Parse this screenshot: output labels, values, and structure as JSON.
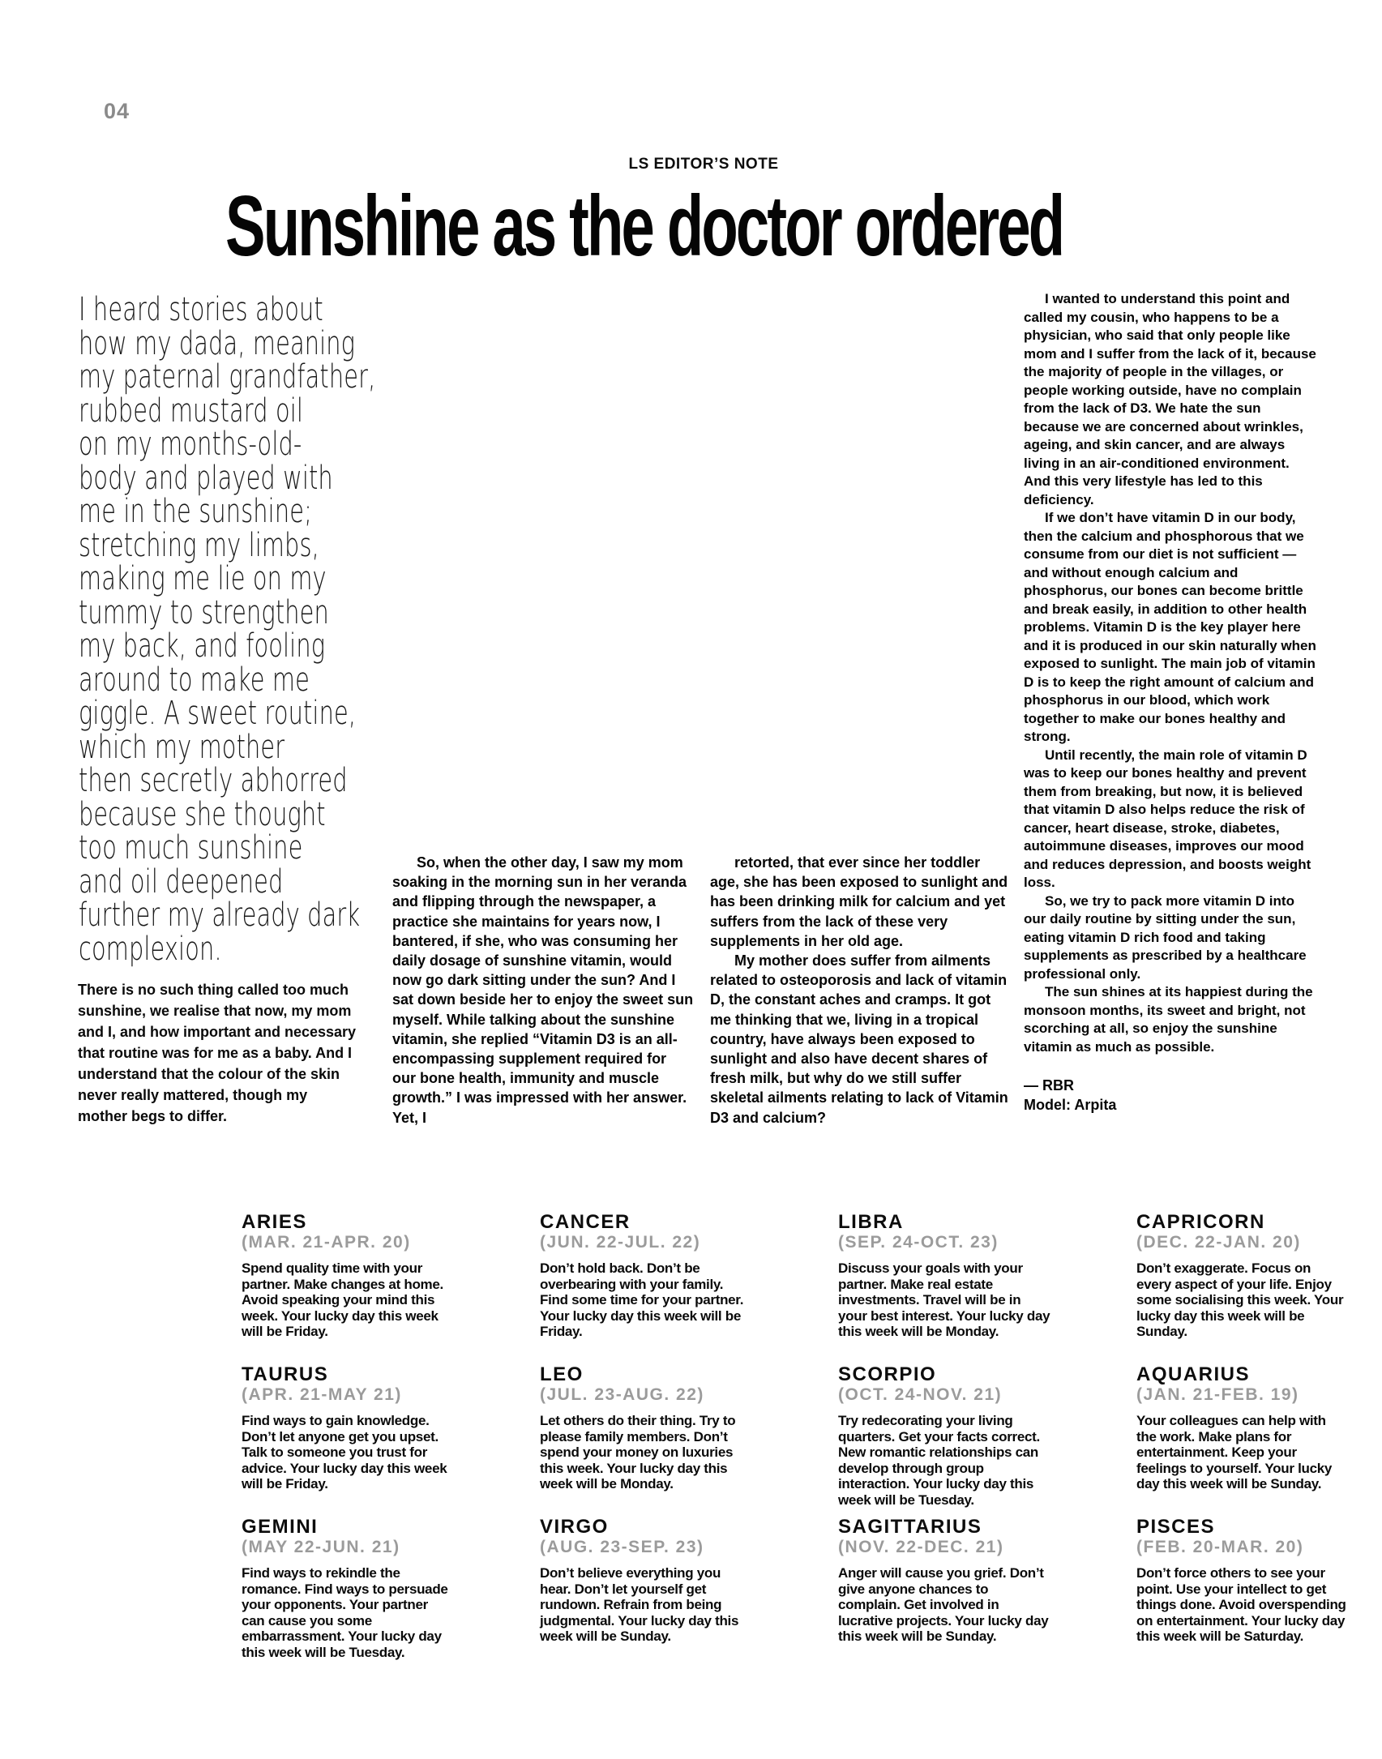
{
  "page": {
    "number": "04"
  },
  "colors": {
    "background": "#ffffff",
    "text": "#050505",
    "page_number_gray": "#8a8a8a",
    "sign_dates_gray": "#9b9b9b"
  },
  "editor_note": {
    "kicker": "LS EDITOR’S NOTE",
    "headline": "Sunshine as the doctor ordered",
    "intro_lines": [
      "I heard stories about",
      "how my dada, meaning",
      "my paternal grandfather,",
      "rubbed mustard oil",
      "on my months-old-",
      "body and played with",
      "me in the sunshine;",
      "stretching my limbs,",
      "making me lie on my",
      "tummy to strengthen",
      "my back, and fooling",
      "around to make me",
      "giggle. A sweet routine,",
      "which my mother",
      "then secretly abhorred",
      "because she thought",
      "too much sunshine",
      "and oil deepened",
      "further my already dark",
      "complexion."
    ],
    "standfirst": "There is no such thing called too much sunshine, we realise that now, my mom and I, and how important and necessary that routine was for me as a baby. And I understand that the colour of the skin never really mattered, though my mother begs to differ.",
    "column2_paragraphs": [
      "So, when the other day, I saw my mom soaking in the morning sun in her veranda and flipping through the newspaper, a practice she maintains for years now, I bantered, if she, who was consuming her daily dosage of sunshine vitamin, would now go dark sitting under the sun? And I sat down beside her to enjoy the sweet sun myself. While talking about the sunshine vitamin, she replied “Vitamin D3 is an all-encompassing supplement required for our bone health, immunity and muscle growth.” I was impressed with her answer. Yet, I"
    ],
    "column3_paragraphs": [
      "retorted, that ever since her toddler age, she has been exposed to sunlight and has been drinking milk for calcium and yet suffers from the lack of these very supplements in her old age.",
      "My mother does suffer from ailments related to osteoporosis and lack of vitamin D, the constant aches and cramps. It got me thinking that we, living in a tropical country, have always been exposed to sunlight and also have decent shares of fresh milk, but why do we still suffer skeletal ailments relating to lack of Vitamin D3 and calcium?"
    ],
    "column4_paragraphs": [
      "I wanted to understand this point and called my cousin, who happens to be a physician, who said that only people like mom and I suffer from the lack of it, because the majority of people in the villages, or people working outside, have no complain from the lack of D3. We hate the sun because we are concerned about wrinkles, ageing, and skin cancer, and are always living in an air-conditioned environment. And this very lifestyle has led to this deficiency.",
      "If we don’t have vitamin D in our body, then the calcium and phosphorous that we consume from our diet is not sufficient — and without enough calcium and phosphorus, our bones can become brittle and break easily, in addition to other health problems. Vitamin D is the key player here and it is produced in our skin naturally when exposed to sunlight. The main job of vitamin D is to keep the right amount of calcium and phosphorus in our blood, which work together to make our bones healthy and strong.",
      "Until recently, the main role of vitamin D was to keep our bones healthy and prevent them from breaking, but now, it is believed that vitamin D also helps reduce the risk of cancer, heart disease, stroke, diabetes, autoimmune diseases, improves our mood and reduces depression, and boosts weight loss.",
      "So, we try to pack more vitamin D into our daily routine by sitting under the sun, eating vitamin D rich food and taking supplements as prescribed by a healthcare professional only.",
      "The sun shines at its happiest during the monsoon months, its sweet and bright, not scorching at all, so enjoy the sunshine vitamin as much as possible."
    ],
    "byline": "— RBR",
    "model_credit": "Model: Arpita"
  },
  "horoscope": {
    "signs": [
      {
        "name": "ARIES",
        "dates": "(MAR. 21-APR. 20)",
        "text": "Spend quality time with your partner. Make changes at home. Avoid speaking your mind this week. Your lucky day this week will be Friday."
      },
      {
        "name": "CANCER",
        "dates": "(JUN. 22-JUL. 22)",
        "text": "Don’t hold back. Don’t be overbearing with your family. Find some time for your partner. Your lucky day this week will be Friday."
      },
      {
        "name": "LIBRA",
        "dates": "(SEP. 24-OCT. 23)",
        "text": "Discuss your goals with your partner. Make real estate investments. Travel will be in your best interest. Your lucky day this week will be Monday."
      },
      {
        "name": "CAPRICORN",
        "dates": "(DEC. 22-JAN. 20)",
        "text": "Don’t exaggerate. Focus on every aspect of your life. Enjoy some socialising this week. Your lucky day this week will be Sunday."
      },
      {
        "name": "TAURUS",
        "dates": "(APR. 21-MAY 21)",
        "text": "Find ways to gain knowledge. Don’t let anyone get you upset. Talk to someone you trust for advice. Your lucky day this week will be Friday."
      },
      {
        "name": "LEO",
        "dates": "(JUL. 23-AUG. 22)",
        "text": "Let others do their thing. Try to please family members. Don’t spend your money on luxuries this week. Your lucky day this week will be Monday."
      },
      {
        "name": "SCORPIO",
        "dates": "(OCT. 24-NOV. 21)",
        "text": "Try redecorating your living quarters. Get your facts correct. New romantic relationships can develop through group interaction. Your lucky day this week will be Tuesday."
      },
      {
        "name": "AQUARIUS",
        "dates": "(JAN. 21-FEB. 19)",
        "text": "Your colleagues can help with the work. Make plans for entertainment. Keep your feelings to yourself. Your lucky day this week will be Sunday."
      },
      {
        "name": "GEMINI",
        "dates": "(MAY 22-JUN. 21)",
        "text": "Find ways to rekindle the romance. Find ways to persuade your opponents. Your partner can cause you some embarrassment. Your lucky day this week will be Tuesday."
      },
      {
        "name": "VIRGO",
        "dates": "(AUG. 23-SEP. 23)",
        "text": "Don’t believe everything you hear. Don’t let yourself get rundown. Refrain from being judgmental. Your lucky day this week will be Sunday."
      },
      {
        "name": "SAGITTARIUS",
        "dates": "(NOV. 22-DEC. 21)",
        "text": "Anger will cause you grief. Don’t give anyone chances to complain. Get involved in lucrative projects. Your lucky day this week will be Sunday."
      },
      {
        "name": "PISCES",
        "dates": "(FEB. 20-MAR. 20)",
        "text": "Don’t force others to see your point. Use your intellect to get things done. Avoid overspending on entertainment. Your lucky day this week will be Saturday."
      }
    ]
  }
}
